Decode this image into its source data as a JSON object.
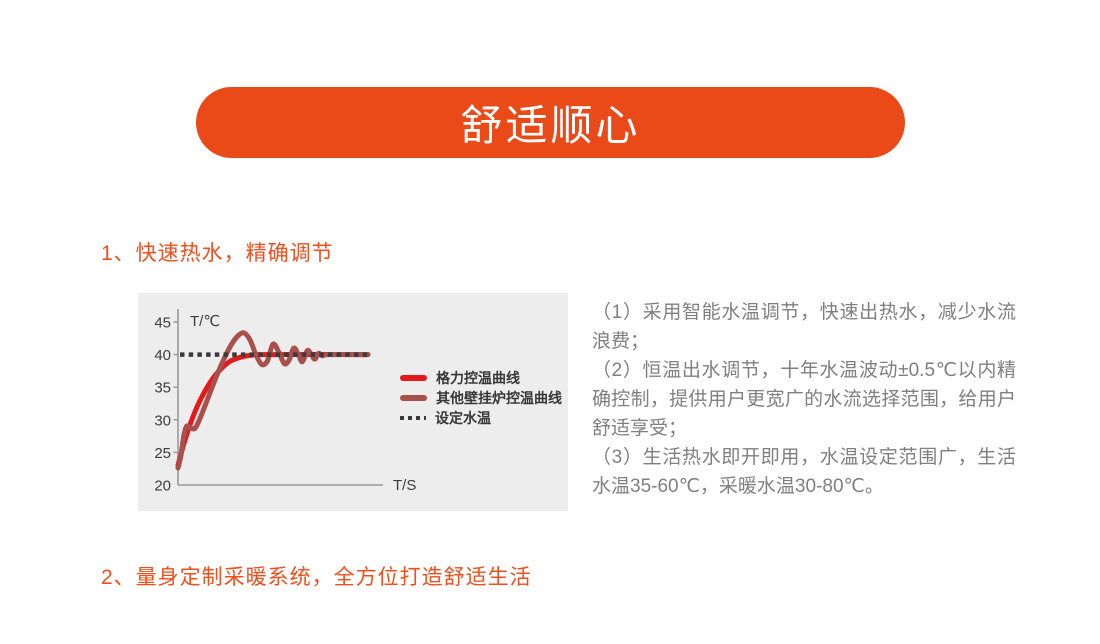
{
  "banner": {
    "title": "舒适顺心",
    "bg_color": "#EA4A17",
    "text_color": "#FFFFFF"
  },
  "accent_color": "#F04E1C",
  "sections": [
    {
      "heading": "1、快速热水，精确调节"
    },
    {
      "heading": "2、量身定制采暖系统，全方位打造舒适生活"
    }
  ],
  "description": {
    "points": [
      "（1）采用智能水温调节，快速出热水，减少水流浪费；",
      "（2）恒温出水调节，十年水温波动±0.5℃以内精确控制，提供用户更宽广的水流选择范围，给用户舒适享受；",
      "（3）生活热水即开即用，水温设定范围广，生活水温35-60℃，采暖水温30-80℃。"
    ]
  },
  "chart_data": {
    "type": "line",
    "title": "",
    "xlabel": "T/S",
    "ylabel": "T/℃",
    "ylim": [
      20,
      45
    ],
    "yticks": [
      45,
      40,
      35,
      30,
      25,
      20
    ],
    "set_temperature": 40,
    "panel_bg": "#EDEDEE",
    "grid": false,
    "legend_position": "right-inside",
    "series": [
      {
        "name": "格力控温曲线",
        "color": "#E3191C",
        "style": "solid",
        "x": [
          0,
          2,
          4,
          7,
          11,
          16,
          21,
          27,
          33,
          40,
          48,
          100
        ],
        "y": [
          23,
          25.2,
          27.2,
          29.8,
          32.6,
          35.3,
          37.3,
          38.9,
          39.6,
          39.95,
          40,
          40
        ]
      },
      {
        "name": "其他壁挂炉控温曲线",
        "color": "#A9504C",
        "style": "solid",
        "x": [
          0,
          1.5,
          3,
          4.5,
          6.5,
          9,
          12,
          16,
          20,
          24,
          28,
          32,
          35,
          38,
          41,
          44,
          47,
          50,
          53,
          56,
          58.5,
          61,
          63.5,
          65.5,
          68,
          70,
          72,
          74,
          76,
          79,
          100
        ],
        "y": [
          22.6,
          24.5,
          27.5,
          29.0,
          28.8,
          28.7,
          30.5,
          33.5,
          36.5,
          39.2,
          41.5,
          43.0,
          43.3,
          42.2,
          40.0,
          38.5,
          39.0,
          41.6,
          40.4,
          38.6,
          39.2,
          41.0,
          39.9,
          38.9,
          40.6,
          40.1,
          39.3,
          40.2,
          39.8,
          40.0,
          40.0
        ]
      },
      {
        "name": "设定水温",
        "color": "#3B3B3B",
        "style": "dotted",
        "y_const": 40
      }
    ]
  }
}
